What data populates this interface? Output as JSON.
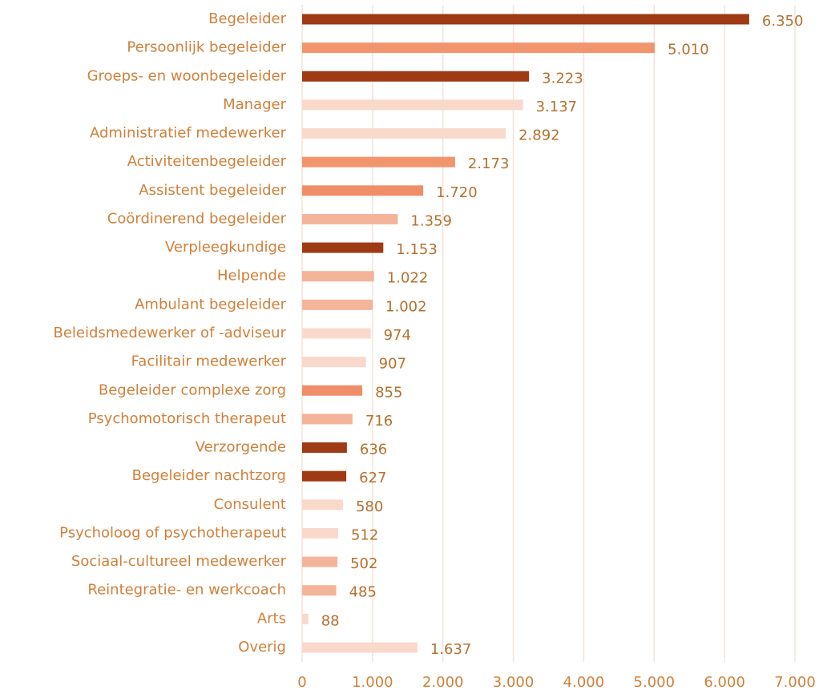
{
  "chart_data": {
    "type": "barh",
    "categories": [
      "Begeleider",
      "Persoonlijk begeleider",
      "Groeps- en woonbegeleider",
      "Manager",
      "Administratief medewerker",
      "Activiteitenbegeleider",
      "Assistent begeleider",
      "Coördinerend begeleider",
      "Verpleegkundige",
      "Helpende",
      "Ambulant begeleider",
      "Beleidsmedewerker of -adviseur",
      "Facilitair medewerker",
      "Begeleider complexe zorg",
      "Psychomotorisch therapeut",
      "Verzorgende",
      "Begeleider nachtzorg",
      "Consulent",
      "Psycholoog of psychotherapeut",
      "Sociaal-cultureel medewerker",
      "Reintegratie- en werkcoach",
      "Arts",
      "Overig"
    ],
    "values": [
      6350,
      5010,
      3223,
      3137,
      2892,
      2173,
      1720,
      1359,
      1153,
      1022,
      1002,
      974,
      907,
      855,
      716,
      636,
      627,
      580,
      512,
      502,
      485,
      88,
      1637
    ],
    "value_labels": [
      "6.350",
      "5.010",
      "3.223",
      "3.137",
      "2.892",
      "2.173",
      "1.720",
      "1.359",
      "1.153",
      "1.022",
      "1.002",
      "974",
      "907",
      "855",
      "716",
      "636",
      "627",
      "580",
      "512",
      "502",
      "485",
      "88",
      "1.637"
    ],
    "colors": [
      "#9e3a14",
      "#f0956e",
      "#9e3a14",
      "#f9d9cc",
      "#f9d9cc",
      "#f0956e",
      "#ef8f6a",
      "#f4b49a",
      "#9e3a14",
      "#f4b49a",
      "#f4b49a",
      "#f9d9cc",
      "#f9d9cc",
      "#ef8f6a",
      "#f4b49a",
      "#9e3a14",
      "#9e3a14",
      "#f9d9cc",
      "#f9d9cc",
      "#f4b49a",
      "#f4b49a",
      "#f9d9cc",
      "#f9d9cc"
    ],
    "xlim": [
      0,
      7000
    ],
    "xticks": [
      0,
      {
        "value": 1000,
        "label": "1.000"
      },
      {
        "value": 2000,
        "label": "2.000"
      },
      {
        "value": 3000,
        "label": "3.000"
      },
      {
        "value": 4000,
        "label": "4.000"
      },
      {
        "value": 5000,
        "label": "5.000"
      },
      {
        "value": 6000,
        "label": "6.000"
      },
      {
        "value": 7000,
        "label": "7.000"
      }
    ],
    "grid": true
  }
}
